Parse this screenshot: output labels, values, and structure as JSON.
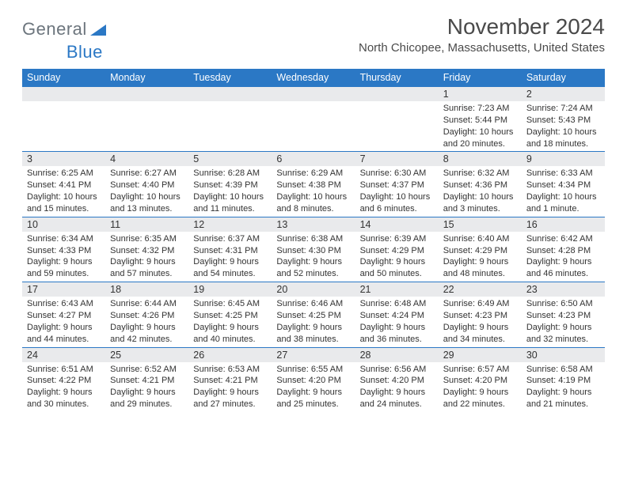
{
  "logo": {
    "text1": "General",
    "text2": "Blue"
  },
  "title": "November 2024",
  "location": "North Chicopee, Massachusetts, United States",
  "colors": {
    "header_bg": "#2b78c5",
    "header_text": "#ffffff",
    "daynum_bg": "#e9eaec",
    "border": "#2b78c5",
    "title_color": "#4a4a4a",
    "logo_gray": "#6c757d",
    "logo_blue": "#2b78c5"
  },
  "columns": [
    "Sunday",
    "Monday",
    "Tuesday",
    "Wednesday",
    "Thursday",
    "Friday",
    "Saturday"
  ],
  "weeks": [
    [
      {
        "n": "",
        "sr": "",
        "ss": "",
        "dl": ""
      },
      {
        "n": "",
        "sr": "",
        "ss": "",
        "dl": ""
      },
      {
        "n": "",
        "sr": "",
        "ss": "",
        "dl": ""
      },
      {
        "n": "",
        "sr": "",
        "ss": "",
        "dl": ""
      },
      {
        "n": "",
        "sr": "",
        "ss": "",
        "dl": ""
      },
      {
        "n": "1",
        "sr": "Sunrise: 7:23 AM",
        "ss": "Sunset: 5:44 PM",
        "dl": "Daylight: 10 hours and 20 minutes."
      },
      {
        "n": "2",
        "sr": "Sunrise: 7:24 AM",
        "ss": "Sunset: 5:43 PM",
        "dl": "Daylight: 10 hours and 18 minutes."
      }
    ],
    [
      {
        "n": "3",
        "sr": "Sunrise: 6:25 AM",
        "ss": "Sunset: 4:41 PM",
        "dl": "Daylight: 10 hours and 15 minutes."
      },
      {
        "n": "4",
        "sr": "Sunrise: 6:27 AM",
        "ss": "Sunset: 4:40 PM",
        "dl": "Daylight: 10 hours and 13 minutes."
      },
      {
        "n": "5",
        "sr": "Sunrise: 6:28 AM",
        "ss": "Sunset: 4:39 PM",
        "dl": "Daylight: 10 hours and 11 minutes."
      },
      {
        "n": "6",
        "sr": "Sunrise: 6:29 AM",
        "ss": "Sunset: 4:38 PM",
        "dl": "Daylight: 10 hours and 8 minutes."
      },
      {
        "n": "7",
        "sr": "Sunrise: 6:30 AM",
        "ss": "Sunset: 4:37 PM",
        "dl": "Daylight: 10 hours and 6 minutes."
      },
      {
        "n": "8",
        "sr": "Sunrise: 6:32 AM",
        "ss": "Sunset: 4:36 PM",
        "dl": "Daylight: 10 hours and 3 minutes."
      },
      {
        "n": "9",
        "sr": "Sunrise: 6:33 AM",
        "ss": "Sunset: 4:34 PM",
        "dl": "Daylight: 10 hours and 1 minute."
      }
    ],
    [
      {
        "n": "10",
        "sr": "Sunrise: 6:34 AM",
        "ss": "Sunset: 4:33 PM",
        "dl": "Daylight: 9 hours and 59 minutes."
      },
      {
        "n": "11",
        "sr": "Sunrise: 6:35 AM",
        "ss": "Sunset: 4:32 PM",
        "dl": "Daylight: 9 hours and 57 minutes."
      },
      {
        "n": "12",
        "sr": "Sunrise: 6:37 AM",
        "ss": "Sunset: 4:31 PM",
        "dl": "Daylight: 9 hours and 54 minutes."
      },
      {
        "n": "13",
        "sr": "Sunrise: 6:38 AM",
        "ss": "Sunset: 4:30 PM",
        "dl": "Daylight: 9 hours and 52 minutes."
      },
      {
        "n": "14",
        "sr": "Sunrise: 6:39 AM",
        "ss": "Sunset: 4:29 PM",
        "dl": "Daylight: 9 hours and 50 minutes."
      },
      {
        "n": "15",
        "sr": "Sunrise: 6:40 AM",
        "ss": "Sunset: 4:29 PM",
        "dl": "Daylight: 9 hours and 48 minutes."
      },
      {
        "n": "16",
        "sr": "Sunrise: 6:42 AM",
        "ss": "Sunset: 4:28 PM",
        "dl": "Daylight: 9 hours and 46 minutes."
      }
    ],
    [
      {
        "n": "17",
        "sr": "Sunrise: 6:43 AM",
        "ss": "Sunset: 4:27 PM",
        "dl": "Daylight: 9 hours and 44 minutes."
      },
      {
        "n": "18",
        "sr": "Sunrise: 6:44 AM",
        "ss": "Sunset: 4:26 PM",
        "dl": "Daylight: 9 hours and 42 minutes."
      },
      {
        "n": "19",
        "sr": "Sunrise: 6:45 AM",
        "ss": "Sunset: 4:25 PM",
        "dl": "Daylight: 9 hours and 40 minutes."
      },
      {
        "n": "20",
        "sr": "Sunrise: 6:46 AM",
        "ss": "Sunset: 4:25 PM",
        "dl": "Daylight: 9 hours and 38 minutes."
      },
      {
        "n": "21",
        "sr": "Sunrise: 6:48 AM",
        "ss": "Sunset: 4:24 PM",
        "dl": "Daylight: 9 hours and 36 minutes."
      },
      {
        "n": "22",
        "sr": "Sunrise: 6:49 AM",
        "ss": "Sunset: 4:23 PM",
        "dl": "Daylight: 9 hours and 34 minutes."
      },
      {
        "n": "23",
        "sr": "Sunrise: 6:50 AM",
        "ss": "Sunset: 4:23 PM",
        "dl": "Daylight: 9 hours and 32 minutes."
      }
    ],
    [
      {
        "n": "24",
        "sr": "Sunrise: 6:51 AM",
        "ss": "Sunset: 4:22 PM",
        "dl": "Daylight: 9 hours and 30 minutes."
      },
      {
        "n": "25",
        "sr": "Sunrise: 6:52 AM",
        "ss": "Sunset: 4:21 PM",
        "dl": "Daylight: 9 hours and 29 minutes."
      },
      {
        "n": "26",
        "sr": "Sunrise: 6:53 AM",
        "ss": "Sunset: 4:21 PM",
        "dl": "Daylight: 9 hours and 27 minutes."
      },
      {
        "n": "27",
        "sr": "Sunrise: 6:55 AM",
        "ss": "Sunset: 4:20 PM",
        "dl": "Daylight: 9 hours and 25 minutes."
      },
      {
        "n": "28",
        "sr": "Sunrise: 6:56 AM",
        "ss": "Sunset: 4:20 PM",
        "dl": "Daylight: 9 hours and 24 minutes."
      },
      {
        "n": "29",
        "sr": "Sunrise: 6:57 AM",
        "ss": "Sunset: 4:20 PM",
        "dl": "Daylight: 9 hours and 22 minutes."
      },
      {
        "n": "30",
        "sr": "Sunrise: 6:58 AM",
        "ss": "Sunset: 4:19 PM",
        "dl": "Daylight: 9 hours and 21 minutes."
      }
    ]
  ]
}
